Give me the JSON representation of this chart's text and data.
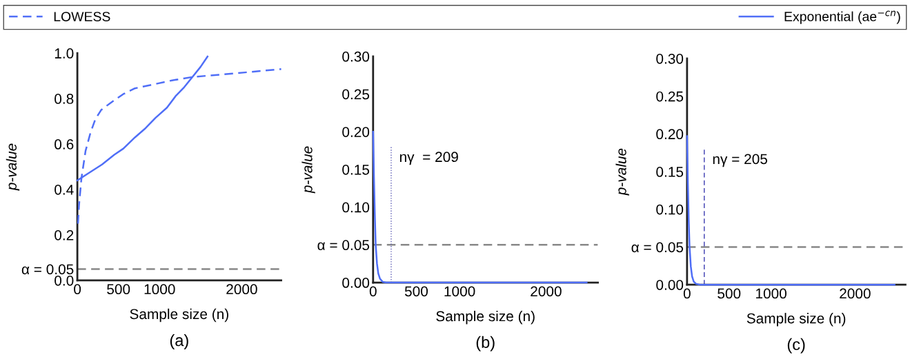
{
  "chart_data": [
    {
      "type": "line",
      "xlabel": "Sample size (n)",
      "ylabel": "p-value",
      "legend": "top",
      "annotations": [
        "(a)"
      ],
      "xlim": [
        0,
        2480
      ],
      "xticks": [
        0,
        500,
        1000,
        2000
      ],
      "ylim": [
        0,
        1.0
      ],
      "yticks": [
        {
          "value": 0,
          "label": "0.0"
        },
        {
          "value": 0.05,
          "label": "α = 0.05"
        },
        0.2,
        0.4,
        0.6,
        0.8,
        {
          "value": 1.0,
          "label": "1.0"
        }
      ],
      "ref_lines": [
        {
          "axis": "y",
          "value": 0.05,
          "color": "#888888",
          "line_style": "dashed"
        }
      ],
      "series": [
        {
          "name": "LOWESS",
          "color": "#4f6ef7",
          "line_style": "dashed",
          "x": [
            8,
            20,
            50,
            100,
            160,
            220,
            290,
            400,
            560,
            700,
            960,
            1150,
            1400,
            1890,
            2480
          ],
          "values": [
            0.25,
            0.33,
            0.45,
            0.57,
            0.65,
            0.71,
            0.75,
            0.78,
            0.82,
            0.845,
            0.865,
            0.88,
            0.895,
            0.91,
            0.93
          ]
        },
        {
          "name": "Exponential (ae$^{−cn}$)",
          "color": "#4f6ef7",
          "line_style": "solid",
          "x": [
            0,
            150,
            300,
            450,
            560,
            700,
            830,
            950,
            1090,
            1200,
            1300,
            1400,
            1500,
            1584
          ],
          "values": [
            0.44,
            0.475,
            0.51,
            0.553,
            0.58,
            0.629,
            0.67,
            0.715,
            0.76,
            0.813,
            0.85,
            0.895,
            0.94,
            0.985
          ]
        }
      ]
    },
    {
      "type": "line",
      "xlabel": "Sample size (n)",
      "ylabel": "p-value",
      "annotations": [
        "(b)"
      ],
      "xlim": [
        0,
        2600
      ],
      "xticks": [
        0,
        500,
        1000,
        2000
      ],
      "ylim": [
        0,
        0.3
      ],
      "yticks": [
        {
          "value": 0,
          "label": "0.00"
        },
        {
          "value": 0.05,
          "label": "α = 0.05"
        },
        {
          "value": 0.1,
          "label": "0.10"
        },
        0.15,
        {
          "value": 0.2,
          "label": "0.20"
        },
        0.25,
        {
          "value": 0.3,
          "label": "0.30"
        }
      ],
      "ref_lines": [
        {
          "axis": "y",
          "value": 0.05,
          "color": "#888888",
          "line_style": "dashed"
        },
        {
          "axis": "x",
          "value": 209,
          "label": "nγ  = 209",
          "color": "#5a5ab4",
          "line_style": "dotted"
        }
      ],
      "series": [
        {
          "color": "#4f6ef7",
          "line_style": "solid",
          "x": [
            0,
            10,
            20,
            30,
            45,
            60,
            80,
            110,
            150,
            2470
          ],
          "values": [
            0.2,
            0.14,
            0.09,
            0.05,
            0.025,
            0.012,
            0.005,
            0.001,
            0,
            0
          ]
        }
      ]
    },
    {
      "type": "line",
      "xlabel": "Sample size (n)",
      "ylabel": "p-value",
      "annotations": [
        "(c)"
      ],
      "xlim": [
        0,
        2600
      ],
      "xticks": [
        0,
        500,
        1000,
        2000
      ],
      "ylim": [
        0,
        0.3
      ],
      "yticks": [
        {
          "value": 0,
          "label": "0.00"
        },
        {
          "value": 0.05,
          "label": "α = 0.05"
        },
        {
          "value": 0.1,
          "label": "0.10"
        },
        0.15,
        {
          "value": 0.2,
          "label": "0.20"
        },
        0.25,
        {
          "value": 0.3,
          "label": "0.30"
        }
      ],
      "ref_lines": [
        {
          "axis": "y",
          "value": 0.05,
          "color": "#888888",
          "line_style": "dashed"
        },
        {
          "axis": "x",
          "value": 205,
          "label": "nγ = 205",
          "color": "#3a3ab0",
          "line_style": "dashed"
        }
      ],
      "series": [
        {
          "color": "#4f6ef7",
          "line_style": "solid",
          "x": [
            0,
            10,
            20,
            30,
            45,
            60,
            80,
            110,
            150,
            2470
          ],
          "values": [
            0.197,
            0.135,
            0.085,
            0.05,
            0.024,
            0.011,
            0.004,
            0.001,
            0,
            0
          ]
        }
      ]
    }
  ]
}
